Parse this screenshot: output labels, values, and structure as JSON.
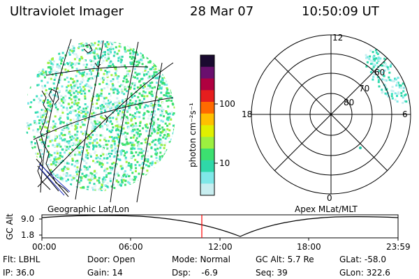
{
  "header": {
    "title": "Ultraviolet Imager",
    "date": "28 Mar 07",
    "time": "10:50:09 UT"
  },
  "geo_panel": {
    "label": "Geographic Lat/Lon"
  },
  "apex_panel": {
    "label": "Apex MLat/MLT",
    "mlt_labels": [
      "12",
      "18",
      "6",
      "0"
    ],
    "mlat_labels": [
      "60",
      "70",
      "80"
    ]
  },
  "colorbar": {
    "unit_label": "photon cm⁻²s⁻¹",
    "ticks": [
      "100",
      "10"
    ],
    "colors": [
      "#1a0a30",
      "#6a0f6e",
      "#b00040",
      "#e61e1e",
      "#ff6a00",
      "#ffc000",
      "#e0f000",
      "#9cf040",
      "#3ce070",
      "#2fd8a8",
      "#7fe8e8",
      "#c8eef0"
    ]
  },
  "orbit_plot": {
    "y_axis_label": "GC Alt",
    "y_ticks": [
      "9.0",
      "1.8"
    ],
    "x_ticks": [
      "00:00",
      "06:00",
      "12:00",
      "18:00",
      "23:59"
    ],
    "current_marker_color": "#ff0000"
  },
  "info": {
    "flt": "Flt: LBHL",
    "ip": "IP: 36.0",
    "door": "Door: Open",
    "gain": "Gain: 14",
    "mode": "Mode: Normal",
    "dsp": "Dsp:    -6.9",
    "gc_alt": "GC Alt: 5.7 Re",
    "seq": "Seq: 39",
    "glat": "GLat: -58.0",
    "glon": "GLon: 322.6"
  }
}
